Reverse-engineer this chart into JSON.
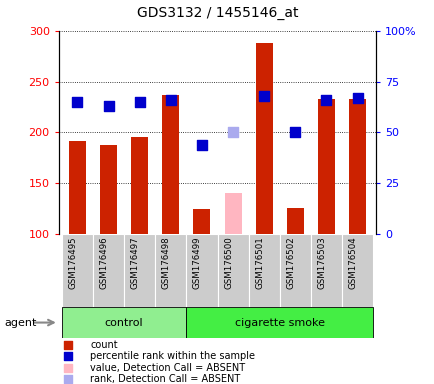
{
  "title": "GDS3132 / 1455146_at",
  "samples": [
    "GSM176495",
    "GSM176496",
    "GSM176497",
    "GSM176498",
    "GSM176499",
    "GSM176500",
    "GSM176501",
    "GSM176502",
    "GSM176503",
    "GSM176504"
  ],
  "counts": [
    192,
    188,
    196,
    237,
    125,
    null,
    288,
    126,
    233,
    233
  ],
  "absent_counts": [
    null,
    null,
    null,
    null,
    null,
    141,
    null,
    null,
    null,
    null
  ],
  "percentile_ranks_pct": [
    65,
    63,
    65,
    66,
    44,
    null,
    68,
    50,
    66,
    67
  ],
  "absent_ranks_pct": [
    null,
    null,
    null,
    null,
    null,
    50,
    null,
    null,
    null,
    null
  ],
  "is_absent": [
    false,
    false,
    false,
    false,
    false,
    true,
    false,
    false,
    false,
    false
  ],
  "groups": [
    "control",
    "control",
    "control",
    "control",
    "cigarette smoke",
    "cigarette smoke",
    "cigarette smoke",
    "cigarette smoke",
    "cigarette smoke",
    "cigarette smoke"
  ],
  "bar_color_present": "#CC2200",
  "bar_color_absent": "#FFB6C1",
  "dot_color_present": "#0000CC",
  "dot_color_absent": "#AAAAEE",
  "ylim_left": [
    100,
    300
  ],
  "ylim_right": [
    0,
    100
  ],
  "yticks_left": [
    100,
    150,
    200,
    250,
    300
  ],
  "yticks_right": [
    0,
    25,
    50,
    75,
    100
  ],
  "ytick_labels_right": [
    "0",
    "25",
    "50",
    "75",
    "100%"
  ],
  "bar_width": 0.55,
  "dot_size": 45,
  "agent_label": "agent",
  "group_label_control": "control",
  "group_label_smoke": "cigarette smoke",
  "ctrl_color": "#90EE90",
  "smoke_color": "#44EE44",
  "grey_cell_color": "#CCCCCC"
}
